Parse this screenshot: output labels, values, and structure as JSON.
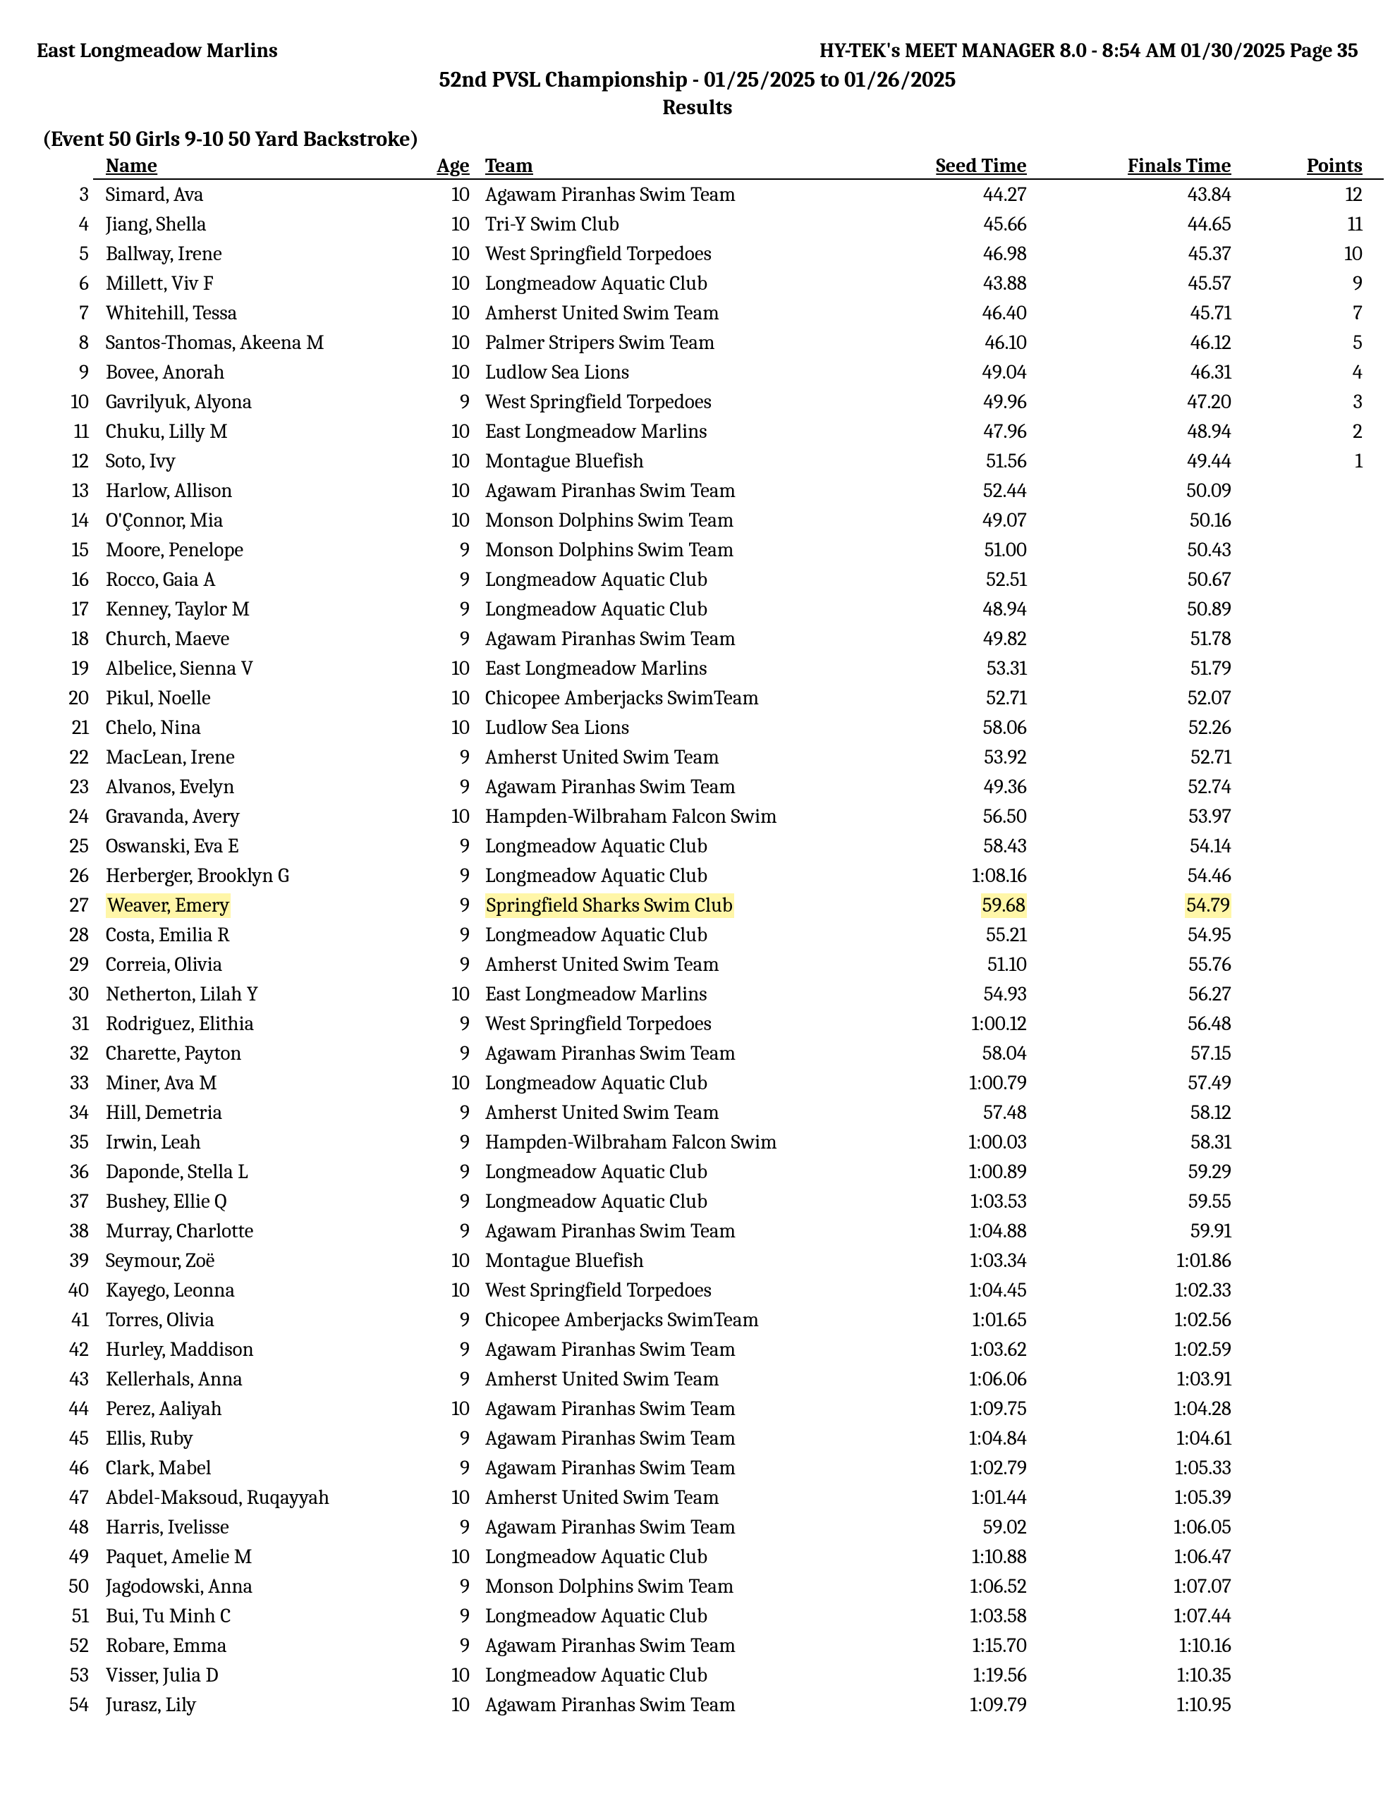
{
  "header": {
    "left": "East Longmeadow Marlins",
    "right": "HY-TEK's MEET MANAGER 8.0 - 8:54 AM  01/30/2025  Page 35",
    "meet_title": "52nd PVSL Championship - 01/25/2025 to 01/26/2025",
    "subtitle": "Results"
  },
  "event": {
    "heading": "(Event 50  Girls 9-10 50 Yard Backstroke)"
  },
  "columns": {
    "name": "Name",
    "age": "Age",
    "team": "Team",
    "seed": "Seed Time",
    "final": "Finals Time",
    "points": "Points"
  },
  "highlight_color": "#fff6a8",
  "rows": [
    {
      "place": "3",
      "name": "Simard, Ava",
      "age": "10",
      "team": "Agawam Piranhas Swim Team",
      "seed": "44.27",
      "final": "43.84",
      "points": "12",
      "hl": false
    },
    {
      "place": "4",
      "name": "Jiang, Shella",
      "age": "10",
      "team": "Tri-Y Swim Club",
      "seed": "45.66",
      "final": "44.65",
      "points": "11",
      "hl": false
    },
    {
      "place": "5",
      "name": "Ballway, Irene",
      "age": "10",
      "team": "West Springfield Torpedoes",
      "seed": "46.98",
      "final": "45.37",
      "points": "10",
      "hl": false
    },
    {
      "place": "6",
      "name": "Millett, Viv F",
      "age": "10",
      "team": "Longmeadow Aquatic Club",
      "seed": "43.88",
      "final": "45.57",
      "points": "9",
      "hl": false
    },
    {
      "place": "7",
      "name": "Whitehill, Tessa",
      "age": "10",
      "team": "Amherst United Swim Team",
      "seed": "46.40",
      "final": "45.71",
      "points": "7",
      "hl": false
    },
    {
      "place": "8",
      "name": "Santos-Thomas, Akeena M",
      "age": "10",
      "team": "Palmer Stripers Swim Team",
      "seed": "46.10",
      "final": "46.12",
      "points": "5",
      "hl": false
    },
    {
      "place": "9",
      "name": "Bovee, Anorah",
      "age": "10",
      "team": "Ludlow Sea Lions",
      "seed": "49.04",
      "final": "46.31",
      "points": "4",
      "hl": false
    },
    {
      "place": "10",
      "name": "Gavrilyuk, Alyona",
      "age": "9",
      "team": "West Springfield Torpedoes",
      "seed": "49.96",
      "final": "47.20",
      "points": "3",
      "hl": false
    },
    {
      "place": "11",
      "name": "Chuku, Lilly M",
      "age": "10",
      "team": "East Longmeadow Marlins",
      "seed": "47.96",
      "final": "48.94",
      "points": "2",
      "hl": false
    },
    {
      "place": "12",
      "name": "Soto, Ivy",
      "age": "10",
      "team": "Montague Bluefish",
      "seed": "51.56",
      "final": "49.44",
      "points": "1",
      "hl": false
    },
    {
      "place": "13",
      "name": "Harlow, Allison",
      "age": "10",
      "team": "Agawam Piranhas Swim Team",
      "seed": "52.44",
      "final": "50.09",
      "points": "",
      "hl": false
    },
    {
      "place": "14",
      "name": "O'Çonnor, Mia",
      "age": "10",
      "team": "Monson Dolphins Swim Team",
      "seed": "49.07",
      "final": "50.16",
      "points": "",
      "hl": false
    },
    {
      "place": "15",
      "name": "Moore, Penelope",
      "age": "9",
      "team": "Monson Dolphins Swim Team",
      "seed": "51.00",
      "final": "50.43",
      "points": "",
      "hl": false
    },
    {
      "place": "16",
      "name": "Rocco, Gaia A",
      "age": "9",
      "team": "Longmeadow Aquatic Club",
      "seed": "52.51",
      "final": "50.67",
      "points": "",
      "hl": false
    },
    {
      "place": "17",
      "name": "Kenney, Taylor M",
      "age": "9",
      "team": "Longmeadow Aquatic Club",
      "seed": "48.94",
      "final": "50.89",
      "points": "",
      "hl": false
    },
    {
      "place": "18",
      "name": "Church, Maeve",
      "age": "9",
      "team": "Agawam Piranhas Swim Team",
      "seed": "49.82",
      "final": "51.78",
      "points": "",
      "hl": false
    },
    {
      "place": "19",
      "name": "Albelice, Sienna V",
      "age": "10",
      "team": "East Longmeadow Marlins",
      "seed": "53.31",
      "final": "51.79",
      "points": "",
      "hl": false
    },
    {
      "place": "20",
      "name": "Pikul, Noelle",
      "age": "10",
      "team": "Chicopee Amberjacks SwimTeam",
      "seed": "52.71",
      "final": "52.07",
      "points": "",
      "hl": false
    },
    {
      "place": "21",
      "name": "Chelo, Nina",
      "age": "10",
      "team": "Ludlow Sea Lions",
      "seed": "58.06",
      "final": "52.26",
      "points": "",
      "hl": false
    },
    {
      "place": "22",
      "name": "MacLean, Irene",
      "age": "9",
      "team": "Amherst United Swim Team",
      "seed": "53.92",
      "final": "52.71",
      "points": "",
      "hl": false
    },
    {
      "place": "23",
      "name": "Alvanos, Evelyn",
      "age": "9",
      "team": "Agawam Piranhas Swim Team",
      "seed": "49.36",
      "final": "52.74",
      "points": "",
      "hl": false
    },
    {
      "place": "24",
      "name": "Gravanda, Avery",
      "age": "10",
      "team": "Hampden-Wilbraham Falcon Swim",
      "seed": "56.50",
      "final": "53.97",
      "points": "",
      "hl": false
    },
    {
      "place": "25",
      "name": "Oswanski, Eva E",
      "age": "9",
      "team": "Longmeadow Aquatic Club",
      "seed": "58.43",
      "final": "54.14",
      "points": "",
      "hl": false
    },
    {
      "place": "26",
      "name": "Herberger, Brooklyn G",
      "age": "9",
      "team": "Longmeadow Aquatic Club",
      "seed": "1:08.16",
      "final": "54.46",
      "points": "",
      "hl": false
    },
    {
      "place": "27",
      "name": "Weaver, Emery",
      "age": "9",
      "team": "Springfield Sharks Swim Club",
      "seed": "59.68",
      "final": "54.79",
      "points": "",
      "hl": true
    },
    {
      "place": "28",
      "name": "Costa, Emilia R",
      "age": "9",
      "team": "Longmeadow Aquatic Club",
      "seed": "55.21",
      "final": "54.95",
      "points": "",
      "hl": false
    },
    {
      "place": "29",
      "name": "Correia, Olivia",
      "age": "9",
      "team": "Amherst United Swim Team",
      "seed": "51.10",
      "final": "55.76",
      "points": "",
      "hl": false
    },
    {
      "place": "30",
      "name": "Netherton, Lilah Y",
      "age": "10",
      "team": "East Longmeadow Marlins",
      "seed": "54.93",
      "final": "56.27",
      "points": "",
      "hl": false
    },
    {
      "place": "31",
      "name": "Rodriguez, Elithia",
      "age": "9",
      "team": "West Springfield Torpedoes",
      "seed": "1:00.12",
      "final": "56.48",
      "points": "",
      "hl": false
    },
    {
      "place": "32",
      "name": "Charette, Payton",
      "age": "9",
      "team": "Agawam Piranhas Swim Team",
      "seed": "58.04",
      "final": "57.15",
      "points": "",
      "hl": false
    },
    {
      "place": "33",
      "name": "Miner, Ava M",
      "age": "10",
      "team": "Longmeadow Aquatic Club",
      "seed": "1:00.79",
      "final": "57.49",
      "points": "",
      "hl": false
    },
    {
      "place": "34",
      "name": "Hill, Demetria",
      "age": "9",
      "team": "Amherst United Swim Team",
      "seed": "57.48",
      "final": "58.12",
      "points": "",
      "hl": false
    },
    {
      "place": "35",
      "name": "Irwin, Leah",
      "age": "9",
      "team": "Hampden-Wilbraham Falcon Swim",
      "seed": "1:00.03",
      "final": "58.31",
      "points": "",
      "hl": false
    },
    {
      "place": "36",
      "name": "Daponde, Stella L",
      "age": "9",
      "team": "Longmeadow Aquatic Club",
      "seed": "1:00.89",
      "final": "59.29",
      "points": "",
      "hl": false
    },
    {
      "place": "37",
      "name": "Bushey, Ellie Q",
      "age": "9",
      "team": "Longmeadow Aquatic Club",
      "seed": "1:03.53",
      "final": "59.55",
      "points": "",
      "hl": false
    },
    {
      "place": "38",
      "name": "Murray, Charlotte",
      "age": "9",
      "team": "Agawam Piranhas Swim Team",
      "seed": "1:04.88",
      "final": "59.91",
      "points": "",
      "hl": false
    },
    {
      "place": "39",
      "name": "Seymour, Zoë",
      "age": "10",
      "team": "Montague Bluefish",
      "seed": "1:03.34",
      "final": "1:01.86",
      "points": "",
      "hl": false
    },
    {
      "place": "40",
      "name": "Kayego, Leonna",
      "age": "10",
      "team": "West Springfield Torpedoes",
      "seed": "1:04.45",
      "final": "1:02.33",
      "points": "",
      "hl": false
    },
    {
      "place": "41",
      "name": "Torres, Olivia",
      "age": "9",
      "team": "Chicopee Amberjacks SwimTeam",
      "seed": "1:01.65",
      "final": "1:02.56",
      "points": "",
      "hl": false
    },
    {
      "place": "42",
      "name": "Hurley, Maddison",
      "age": "9",
      "team": "Agawam Piranhas Swim Team",
      "seed": "1:03.62",
      "final": "1:02.59",
      "points": "",
      "hl": false
    },
    {
      "place": "43",
      "name": "Kellerhals, Anna",
      "age": "9",
      "team": "Amherst United Swim Team",
      "seed": "1:06.06",
      "final": "1:03.91",
      "points": "",
      "hl": false
    },
    {
      "place": "44",
      "name": "Perez, Aaliyah",
      "age": "10",
      "team": "Agawam Piranhas Swim Team",
      "seed": "1:09.75",
      "final": "1:04.28",
      "points": "",
      "hl": false
    },
    {
      "place": "45",
      "name": "Ellis, Ruby",
      "age": "9",
      "team": "Agawam Piranhas Swim Team",
      "seed": "1:04.84",
      "final": "1:04.61",
      "points": "",
      "hl": false
    },
    {
      "place": "46",
      "name": "Clark, Mabel",
      "age": "9",
      "team": "Agawam Piranhas Swim Team",
      "seed": "1:02.79",
      "final": "1:05.33",
      "points": "",
      "hl": false
    },
    {
      "place": "47",
      "name": "Abdel-Maksoud, Ruqayyah",
      "age": "10",
      "team": "Amherst United Swim Team",
      "seed": "1:01.44",
      "final": "1:05.39",
      "points": "",
      "hl": false
    },
    {
      "place": "48",
      "name": "Harris, Ivelisse",
      "age": "9",
      "team": "Agawam Piranhas Swim Team",
      "seed": "59.02",
      "final": "1:06.05",
      "points": "",
      "hl": false
    },
    {
      "place": "49",
      "name": "Paquet, Amelie M",
      "age": "10",
      "team": "Longmeadow Aquatic Club",
      "seed": "1:10.88",
      "final": "1:06.47",
      "points": "",
      "hl": false
    },
    {
      "place": "50",
      "name": "Jagodowski, Anna",
      "age": "9",
      "team": "Monson Dolphins Swim Team",
      "seed": "1:06.52",
      "final": "1:07.07",
      "points": "",
      "hl": false
    },
    {
      "place": "51",
      "name": "Bui, Tu Minh C",
      "age": "9",
      "team": "Longmeadow Aquatic Club",
      "seed": "1:03.58",
      "final": "1:07.44",
      "points": "",
      "hl": false
    },
    {
      "place": "52",
      "name": "Robare, Emma",
      "age": "9",
      "team": "Agawam Piranhas Swim Team",
      "seed": "1:15.70",
      "final": "1:10.16",
      "points": "",
      "hl": false
    },
    {
      "place": "53",
      "name": "Visser, Julia D",
      "age": "10",
      "team": "Longmeadow Aquatic Club",
      "seed": "1:19.56",
      "final": "1:10.35",
      "points": "",
      "hl": false
    },
    {
      "place": "54",
      "name": "Jurasz, Lily",
      "age": "10",
      "team": "Agawam Piranhas Swim Team",
      "seed": "1:09.79",
      "final": "1:10.95",
      "points": "",
      "hl": false
    }
  ]
}
